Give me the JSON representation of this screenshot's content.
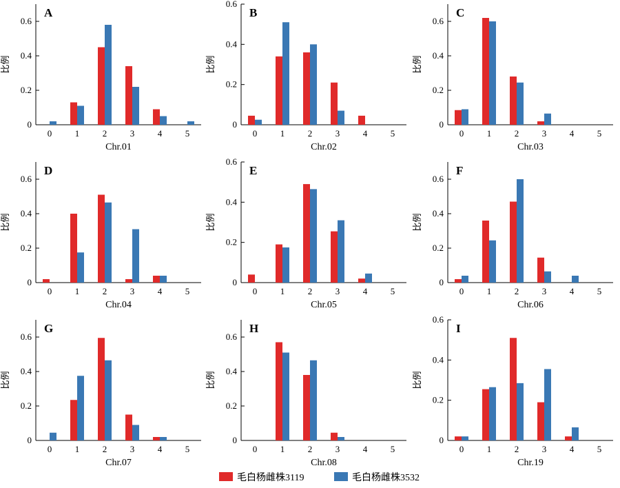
{
  "legend": {
    "series_1": "毛白杨雌株3119",
    "series_2": "毛白杨雌株3532"
  },
  "colors": {
    "series_1": "#e02a2a",
    "series_2": "#3a78b4",
    "axis": "#000000"
  },
  "chart_data": [
    {
      "type": "bar",
      "panel": "A",
      "xlabel": "Chr.01",
      "ylabel": "比例",
      "categories": [
        "0",
        "1",
        "2",
        "3",
        "4",
        "5"
      ],
      "yticks": [
        "0",
        "0.2",
        "0.4",
        "0.6"
      ],
      "ylim": [
        0,
        0.7
      ],
      "series": [
        {
          "name": "毛白杨雌株3119",
          "values": [
            0,
            0.13,
            0.45,
            0.34,
            0.09,
            0
          ]
        },
        {
          "name": "毛白杨雌株3532",
          "values": [
            0.02,
            0.11,
            0.58,
            0.22,
            0.05,
            0.02
          ]
        }
      ]
    },
    {
      "type": "bar",
      "panel": "B",
      "xlabel": "Chr.02",
      "ylabel": "比例",
      "categories": [
        "0",
        "1",
        "2",
        "3",
        "4",
        "5"
      ],
      "yticks": [
        "0",
        "0.2",
        "0.4",
        "0.6"
      ],
      "ylim": [
        0,
        0.6
      ],
      "series": [
        {
          "name": "毛白杨雌株3119",
          "values": [
            0.045,
            0.34,
            0.36,
            0.21,
            0.045,
            0
          ]
        },
        {
          "name": "毛白杨雌株3532",
          "values": [
            0.025,
            0.51,
            0.4,
            0.07,
            0,
            0
          ]
        }
      ]
    },
    {
      "type": "bar",
      "panel": "C",
      "xlabel": "Chr.03",
      "ylabel": "比例",
      "categories": [
        "0",
        "1",
        "2",
        "3",
        "4",
        "5"
      ],
      "yticks": [
        "0",
        "0.2",
        "0.4",
        "0.6"
      ],
      "ylim": [
        0,
        0.7
      ],
      "series": [
        {
          "name": "毛白杨雌株3119",
          "values": [
            0.085,
            0.62,
            0.28,
            0.02,
            0,
            0
          ]
        },
        {
          "name": "毛白杨雌株3532",
          "values": [
            0.09,
            0.6,
            0.245,
            0.065,
            0,
            0
          ]
        }
      ]
    },
    {
      "type": "bar",
      "panel": "D",
      "xlabel": "Chr.04",
      "ylabel": "比例",
      "categories": [
        "0",
        "1",
        "2",
        "3",
        "4",
        "5"
      ],
      "yticks": [
        "0",
        "0.2",
        "0.4",
        "0.6"
      ],
      "ylim": [
        0,
        0.7
      ],
      "series": [
        {
          "name": "毛白杨雌株3119",
          "values": [
            0.02,
            0.4,
            0.51,
            0.02,
            0.04,
            0
          ]
        },
        {
          "name": "毛白杨雌株3532",
          "values": [
            0,
            0.175,
            0.465,
            0.31,
            0.04,
            0
          ]
        }
      ]
    },
    {
      "type": "bar",
      "panel": "E",
      "xlabel": "Chr.05",
      "ylabel": "比例",
      "categories": [
        "0",
        "1",
        "2",
        "3",
        "4",
        "5"
      ],
      "yticks": [
        "0",
        "0.2",
        "0.4",
        "0.6"
      ],
      "ylim": [
        0,
        0.6
      ],
      "series": [
        {
          "name": "毛白杨雌株3119",
          "values": [
            0.04,
            0.19,
            0.49,
            0.255,
            0.02,
            0
          ]
        },
        {
          "name": "毛白杨雌株3532",
          "values": [
            0,
            0.175,
            0.465,
            0.31,
            0.045,
            0
          ]
        }
      ]
    },
    {
      "type": "bar",
      "panel": "F",
      "xlabel": "Chr.06",
      "ylabel": "比例",
      "categories": [
        "0",
        "1",
        "2",
        "3",
        "4",
        "5"
      ],
      "yticks": [
        "0",
        "0.2",
        "0.4",
        "0.6"
      ],
      "ylim": [
        0,
        0.7
      ],
      "series": [
        {
          "name": "毛白杨雌株3119",
          "values": [
            0.02,
            0.36,
            0.47,
            0.145,
            0,
            0
          ]
        },
        {
          "name": "毛白杨雌株3532",
          "values": [
            0.04,
            0.245,
            0.6,
            0.065,
            0.04,
            0
          ]
        }
      ]
    },
    {
      "type": "bar",
      "panel": "G",
      "xlabel": "Chr.07",
      "ylabel": "比例",
      "categories": [
        "0",
        "1",
        "2",
        "3",
        "4",
        "5"
      ],
      "yticks": [
        "0",
        "0.2",
        "0.4",
        "0.6"
      ],
      "ylim": [
        0,
        0.7
      ],
      "series": [
        {
          "name": "毛白杨雌株3119",
          "values": [
            0,
            0.235,
            0.595,
            0.15,
            0.02,
            0
          ]
        },
        {
          "name": "毛白杨雌株3532",
          "values": [
            0.045,
            0.375,
            0.465,
            0.09,
            0.02,
            0
          ]
        }
      ]
    },
    {
      "type": "bar",
      "panel": "H",
      "xlabel": "Chr.08",
      "ylabel": "比例",
      "categories": [
        "0",
        "1",
        "2",
        "3",
        "4",
        "5"
      ],
      "yticks": [
        "0",
        "0.2",
        "0.4",
        "0.6"
      ],
      "ylim": [
        0,
        0.7
      ],
      "series": [
        {
          "name": "毛白杨雌株3119",
          "values": [
            0,
            0.57,
            0.38,
            0.045,
            0,
            0
          ]
        },
        {
          "name": "毛白杨雌株3532",
          "values": [
            0,
            0.51,
            0.465,
            0.02,
            0,
            0
          ]
        }
      ]
    },
    {
      "type": "bar",
      "panel": "I",
      "xlabel": "Chr.19",
      "ylabel": "比例",
      "categories": [
        "0",
        "1",
        "2",
        "3",
        "4",
        "5"
      ],
      "yticks": [
        "0",
        "0.2",
        "0.4",
        "0.6"
      ],
      "ylim": [
        0,
        0.6
      ],
      "series": [
        {
          "name": "毛白杨雌株3119",
          "values": [
            0.02,
            0.255,
            0.51,
            0.19,
            0.02,
            0
          ]
        },
        {
          "name": "毛白杨雌株3532",
          "values": [
            0.02,
            0.265,
            0.285,
            0.355,
            0.065,
            0
          ]
        }
      ]
    }
  ]
}
